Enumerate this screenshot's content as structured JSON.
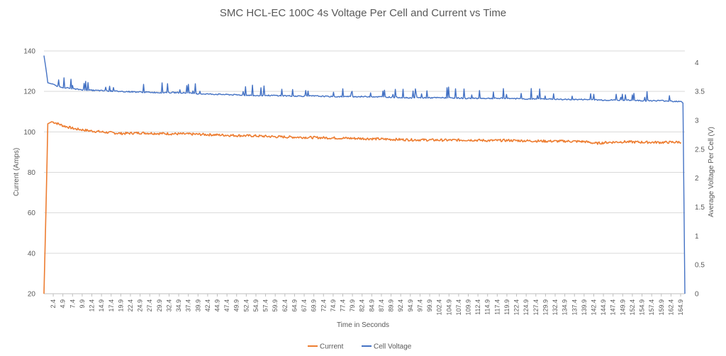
{
  "chart_data": {
    "type": "line",
    "title": "SMC HCL-EC 100C 4s Voltage Per Cell and Current vs Time",
    "xlabel": "Time in Seconds",
    "ylabel": "Current (Amps)",
    "y2label": "Average Voltage Per Cell (V)",
    "ylim": [
      20,
      140
    ],
    "y2lim": [
      0,
      4.2
    ],
    "xlim": [
      0,
      166
    ],
    "yticks": [
      "20",
      "40",
      "60",
      "80",
      "100",
      "120",
      "140"
    ],
    "y2ticks": [
      "0",
      "0.5",
      "1",
      "1.5",
      "2",
      "2.5",
      "3",
      "3.5",
      "4"
    ],
    "xticks": [
      "2.4",
      "4.9",
      "7.4",
      "9.9",
      "12.4",
      "14.9",
      "17.4",
      "19.9",
      "22.4",
      "24.9",
      "27.4",
      "29.9",
      "32.4",
      "34.9",
      "37.4",
      "39.9",
      "42.4",
      "44.9",
      "47.4",
      "49.9",
      "52.4",
      "54.9",
      "57.4",
      "59.9",
      "62.4",
      "64.9",
      "67.4",
      "69.9",
      "72.4",
      "74.9",
      "77.4",
      "79.9",
      "82.4",
      "84.9",
      "87.4",
      "89.9",
      "92.4",
      "94.9",
      "97.4",
      "99.9",
      "102.4",
      "104.9",
      "107.4",
      "109.9",
      "112.4",
      "114.9",
      "117.4",
      "119.9",
      "122.4",
      "124.9",
      "127.4",
      "129.9",
      "132.4",
      "134.9",
      "137.4",
      "139.9",
      "142.4",
      "144.9",
      "147.4",
      "149.9",
      "152.4",
      "154.9",
      "157.4",
      "159.9",
      "162.4",
      "164.9"
    ],
    "grid": true,
    "legend": "bottom",
    "series": [
      {
        "name": "Current",
        "axis": "left",
        "color": "#ed7d31",
        "x": [
          0,
          0.5,
          1,
          2,
          3,
          5,
          8,
          12,
          16,
          20,
          25,
          30,
          35,
          40,
          45,
          50,
          55,
          60,
          65,
          70,
          75,
          80,
          85,
          90,
          95,
          100,
          105,
          110,
          115,
          120,
          125,
          130,
          135,
          140,
          143,
          146,
          150,
          155,
          160,
          163,
          165
        ],
        "values": [
          20,
          60,
          104,
          105,
          104.5,
          103,
          101.5,
          100.5,
          99.8,
          99.2,
          99.5,
          99.2,
          99,
          98.8,
          98.5,
          98.2,
          98,
          97.6,
          97.4,
          97.2,
          97,
          96.8,
          96.6,
          96.3,
          96.1,
          96,
          95.9,
          96,
          95.7,
          95.8,
          95.6,
          95.4,
          95.4,
          95.2,
          94.3,
          94.8,
          95.1,
          94.9,
          94.8,
          94.9,
          95
        ]
      },
      {
        "name": "Cell Voltage",
        "axis": "right",
        "color": "#4472c4",
        "x": [
          0,
          0.5,
          1,
          2,
          3,
          5,
          8,
          12,
          16,
          20,
          25,
          30,
          35,
          40,
          45,
          50,
          55,
          60,
          65,
          70,
          75,
          80,
          85,
          90,
          95,
          100,
          105,
          110,
          115,
          120,
          125,
          130,
          135,
          140,
          145,
          150,
          155,
          160,
          163,
          165,
          165.5,
          166
        ],
        "values": [
          4.12,
          3.9,
          3.65,
          3.63,
          3.6,
          3.57,
          3.54,
          3.52,
          3.51,
          3.5,
          3.49,
          3.48,
          3.48,
          3.46,
          3.45,
          3.44,
          3.43,
          3.43,
          3.42,
          3.42,
          3.41,
          3.41,
          3.41,
          3.4,
          3.39,
          3.39,
          3.39,
          3.38,
          3.38,
          3.38,
          3.37,
          3.37,
          3.36,
          3.36,
          3.35,
          3.35,
          3.34,
          3.34,
          3.33,
          3.33,
          3.3,
          0
        ]
      }
    ]
  }
}
